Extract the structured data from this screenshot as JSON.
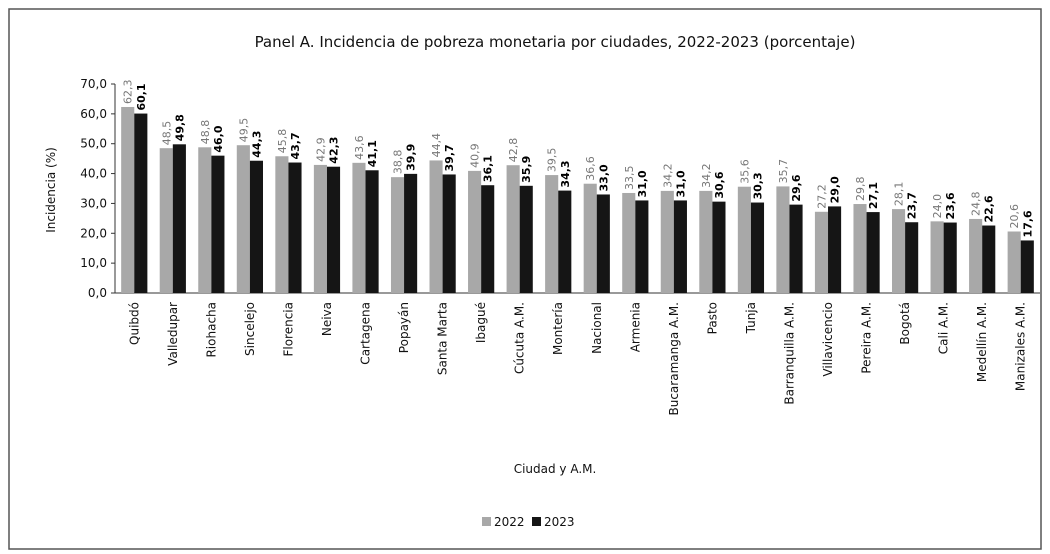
{
  "chart_data": {
    "type": "bar",
    "title": "Panel A. Incidencia de pobreza monetaria por ciudades, 2022-2023 (porcentaje)",
    "x_label": "Ciudad y A.M.",
    "y_label": "Incidencia (%)",
    "categories": [
      "Quibdó",
      "Valledupar",
      "Riohacha",
      "Sincelejo",
      "Florencia",
      "Neiva",
      "Cartagena",
      "Popayán",
      "Santa Marta",
      "Ibagué",
      "Cúcuta A.M.",
      "Montería",
      "Nacional",
      "Armenia",
      "Bucaramanga A.M.",
      "Pasto",
      "Tunja",
      "Barranquilla A.M.",
      "Villavicencio",
      "Pereira A.M.",
      "Bogotá",
      "Cali A.M.",
      "Medellín A.M.",
      "Manizales A.M."
    ],
    "series": [
      {
        "name": "2022",
        "color": "#a8a8a8",
        "values": [
          62.3,
          48.5,
          48.8,
          49.5,
          45.8,
          42.9,
          43.6,
          38.8,
          44.4,
          40.9,
          42.8,
          39.5,
          36.6,
          33.5,
          34.2,
          34.2,
          35.6,
          35.7,
          27.2,
          29.8,
          28.1,
          24.0,
          24.8,
          20.6
        ],
        "value_labels": [
          "62,3",
          "48,5",
          "48,8",
          "49,5",
          "45,8",
          "42,9",
          "43,6",
          "38,8",
          "44,4",
          "40,9",
          "42,8",
          "39,5",
          "36,6",
          "33,5",
          "34,2",
          "34,2",
          "35,6",
          "35,7",
          "27,2",
          "29,8",
          "28,1",
          "24,0",
          "24,8",
          "20,6"
        ]
      },
      {
        "name": "2023",
        "color": "#151515",
        "values": [
          60.1,
          49.8,
          46.0,
          44.3,
          43.7,
          42.3,
          41.1,
          39.9,
          39.7,
          36.1,
          35.9,
          34.3,
          33.0,
          31.0,
          31.0,
          30.6,
          30.3,
          29.6,
          29.0,
          27.1,
          23.7,
          23.6,
          22.6,
          17.6
        ],
        "value_labels": [
          "60,1",
          "49,8",
          "46,0",
          "44,3",
          "43,7",
          "42,3",
          "41,1",
          "39,9",
          "39,7",
          "36,1",
          "35,9",
          "34,3",
          "33,0",
          "31,0",
          "31,0",
          "30,6",
          "30,3",
          "29,6",
          "29,0",
          "27,1",
          "23,7",
          "23,6",
          "22,6",
          "17,6"
        ]
      }
    ],
    "ylim": [
      0,
      70
    ],
    "yticks": [
      {
        "value": 0,
        "label": "0,0"
      },
      {
        "value": 10,
        "label": "10,0"
      },
      {
        "value": 20,
        "label": "20,0"
      },
      {
        "value": 30,
        "label": "30,0"
      },
      {
        "value": 40,
        "label": "40,0"
      },
      {
        "value": 50,
        "label": "50,0"
      },
      {
        "value": 60,
        "label": "60,0"
      },
      {
        "value": 70,
        "label": "70,0"
      }
    ],
    "legend": "bottom"
  }
}
